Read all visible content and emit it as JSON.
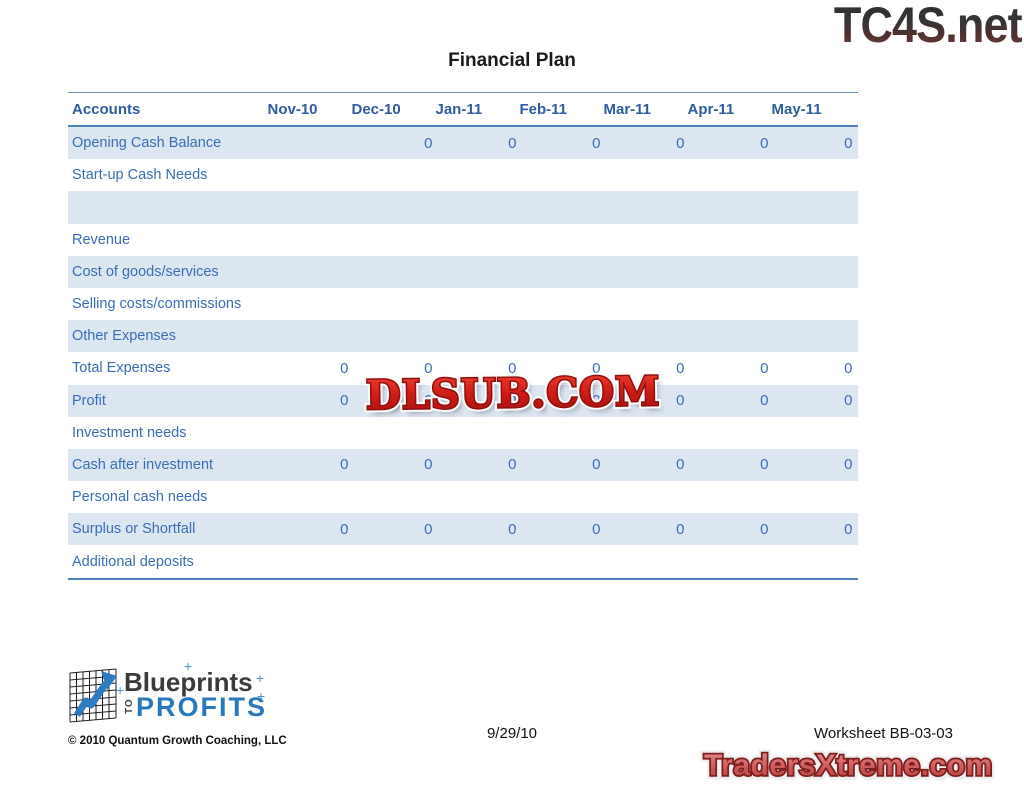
{
  "title": "Financial Plan",
  "watermarks": {
    "top_right": "TC4S.net",
    "center": "DLSUB.COM",
    "bottom_right": "TradersXtreme.com"
  },
  "table": {
    "accounts_header": "Accounts",
    "months": [
      "Nov-10",
      "Dec-10",
      "Jan-11",
      "Feb-11",
      "Mar-11",
      "Apr-11",
      "May-11"
    ],
    "rows": [
      {
        "label": "Opening Cash Balance",
        "values": [
          "",
          "0",
          "0",
          "0",
          "0",
          "0",
          "0"
        ]
      },
      {
        "label": "Start-up Cash Needs",
        "values": [
          "",
          "",
          "",
          "",
          "",
          "",
          ""
        ]
      },
      {
        "label": "",
        "values": [
          "",
          "",
          "",
          "",
          "",
          "",
          ""
        ]
      },
      {
        "label": "Revenue",
        "values": [
          "",
          "",
          "",
          "",
          "",
          "",
          ""
        ]
      },
      {
        "label": "Cost of goods/services",
        "values": [
          "",
          "",
          "",
          "",
          "",
          "",
          ""
        ]
      },
      {
        "label": "Selling costs/commissions",
        "values": [
          "",
          "",
          "",
          "",
          "",
          "",
          ""
        ]
      },
      {
        "label": "Other Expenses",
        "values": [
          "",
          "",
          "",
          "",
          "",
          "",
          ""
        ]
      },
      {
        "label": "Total Expenses",
        "values": [
          "0",
          "0",
          "0",
          "0",
          "0",
          "0",
          "0"
        ]
      },
      {
        "label": "Profit",
        "values": [
          "0",
          "0",
          "0",
          "0",
          "0",
          "0",
          "0"
        ]
      },
      {
        "label": "Investment needs",
        "values": [
          "",
          "",
          "",
          "",
          "",
          "",
          ""
        ]
      },
      {
        "label": "Cash after investment",
        "values": [
          "0",
          "0",
          "0",
          "0",
          "0",
          "0",
          "0"
        ]
      },
      {
        "label": "Personal cash needs",
        "values": [
          "",
          "",
          "",
          "",
          "",
          "",
          ""
        ]
      },
      {
        "label": "Surplus or Shortfall",
        "values": [
          "0",
          "0",
          "0",
          "0",
          "0",
          "0",
          "0"
        ]
      },
      {
        "label": "Additional deposits",
        "values": [
          "",
          "",
          "",
          "",
          "",
          "",
          ""
        ]
      }
    ]
  },
  "footer": {
    "logo": {
      "line1": "Blueprints",
      "to": "TO",
      "line2": "PROFITS"
    },
    "copyright": "© 2010 Quantum Growth Coaching, LLC",
    "date": "9/29/10",
    "worksheet": "Worksheet BB-03-03"
  },
  "colors": {
    "table_border": "#4F81BD",
    "row_shade": "#DCE6F1",
    "header_text": "#2E5C9E",
    "body_text": "#3A6DB5",
    "logo_blue": "#2878BE",
    "watermark_red": "#C01414",
    "watermark_salmon": "#CD5A5A"
  }
}
